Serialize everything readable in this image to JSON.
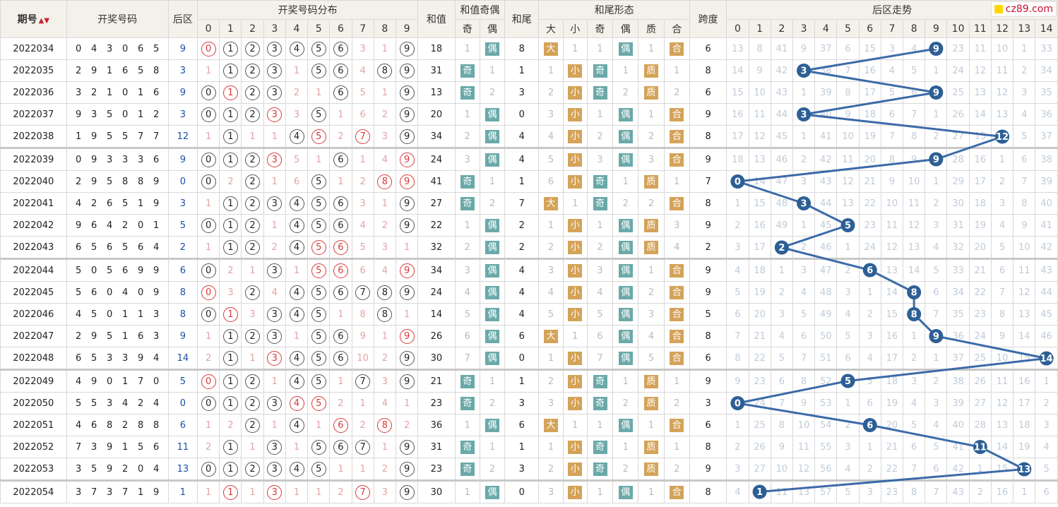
{
  "header": {
    "issue": "期号",
    "draw": "开奖号码",
    "back": "后区",
    "dist": "开奖号码分布",
    "sum": "和值",
    "sum_parity": "和值奇偶",
    "tail": "和尾",
    "tail_form": "和尾形态",
    "span": "跨度",
    "trend": "后区走势",
    "odd": "奇",
    "even": "偶",
    "big": "大",
    "small": "小",
    "prime": "质",
    "composite": "合",
    "digits": [
      "0",
      "1",
      "2",
      "3",
      "4",
      "5",
      "6",
      "7",
      "8",
      "9"
    ],
    "trend_cols": [
      "0",
      "1",
      "2",
      "3",
      "4",
      "5",
      "6",
      "7",
      "8",
      "9",
      "10",
      "11",
      "12",
      "13",
      "14"
    ]
  },
  "logo": {
    "text": "cz89.com"
  },
  "colors": {
    "ball_red": "#d83a3a",
    "tag_teal": "#6ba9a9",
    "tag_orange": "#d4a358",
    "trend_line": "#3b6aa8",
    "trend_node": "#2d5f95"
  },
  "rows": [
    {
      "issue": "2022034",
      "d": [
        "0",
        "4",
        "3",
        "0",
        "6",
        "5"
      ],
      "b": "9",
      "dist": [
        "0r",
        "1",
        "2",
        "3",
        "4",
        "5",
        "6",
        "3",
        "1",
        "9"
      ],
      "sum": "18",
      "sp": [
        "1",
        "偶"
      ],
      "tail": "8",
      "bs": [
        "大",
        "1"
      ],
      "oe": [
        "1",
        "偶"
      ],
      "pc": [
        "1",
        "合"
      ],
      "span": "6",
      "tr": [
        "13",
        "8",
        "41",
        "9",
        "37",
        "6",
        "15",
        "3",
        "4",
        "9",
        "23",
        "11",
        "10",
        "1",
        "33"
      ]
    },
    {
      "issue": "2022035",
      "d": [
        "2",
        "9",
        "1",
        "6",
        "5",
        "8"
      ],
      "b": "3",
      "dist": [
        "1",
        "1",
        "2",
        "3",
        "1",
        "5",
        "6",
        "4",
        "8",
        "9"
      ],
      "sum": "31",
      "sp": [
        "奇",
        "1"
      ],
      "tail": "1",
      "bs": [
        "1",
        "小"
      ],
      "oe": [
        "奇",
        "1"
      ],
      "pc": [
        "质",
        "1"
      ],
      "span": "8",
      "tr": [
        "14",
        "9",
        "42",
        "3",
        "38",
        "7",
        "16",
        "4",
        "5",
        "1",
        "24",
        "12",
        "11",
        "2",
        "34"
      ]
    },
    {
      "issue": "2022036",
      "d": [
        "3",
        "2",
        "1",
        "0",
        "1",
        "6"
      ],
      "b": "9",
      "dist": [
        "0",
        "1r",
        "2",
        "3",
        "2",
        "1",
        "6",
        "5",
        "1",
        "9"
      ],
      "sum": "13",
      "sp": [
        "奇",
        "2"
      ],
      "tail": "3",
      "bs": [
        "2",
        "小"
      ],
      "oe": [
        "奇",
        "2"
      ],
      "pc": [
        "质",
        "2"
      ],
      "span": "6",
      "tr": [
        "15",
        "10",
        "43",
        "1",
        "39",
        "8",
        "17",
        "5",
        "6",
        "9",
        "25",
        "13",
        "12",
        "3",
        "35"
      ]
    },
    {
      "issue": "2022037",
      "d": [
        "9",
        "3",
        "5",
        "0",
        "1",
        "2"
      ],
      "b": "3",
      "dist": [
        "0",
        "1",
        "2",
        "3r",
        "3",
        "5",
        "1",
        "6",
        "2",
        "9"
      ],
      "sum": "20",
      "sp": [
        "1",
        "偶"
      ],
      "tail": "0",
      "bs": [
        "3",
        "小"
      ],
      "oe": [
        "1",
        "偶"
      ],
      "pc": [
        "1",
        "合"
      ],
      "span": "9",
      "tr": [
        "16",
        "11",
        "44",
        "3",
        "40",
        "9",
        "18",
        "6",
        "7",
        "1",
        "26",
        "14",
        "13",
        "4",
        "36"
      ]
    },
    {
      "issue": "2022038",
      "d": [
        "1",
        "9",
        "5",
        "5",
        "7",
        "7"
      ],
      "b": "12",
      "dist": [
        "1",
        "1",
        "1",
        "1",
        "4",
        "5r",
        "2",
        "7r",
        "3",
        "9"
      ],
      "sum": "34",
      "sp": [
        "2",
        "偶"
      ],
      "tail": "4",
      "bs": [
        "4",
        "小"
      ],
      "oe": [
        "2",
        "偶"
      ],
      "pc": [
        "2",
        "合"
      ],
      "span": "8",
      "tr": [
        "17",
        "12",
        "45",
        "1",
        "41",
        "10",
        "19",
        "7",
        "8",
        "2",
        "27",
        "15",
        "12",
        "5",
        "37"
      ]
    },
    {
      "issue": "2022039",
      "d": [
        "0",
        "9",
        "3",
        "3",
        "3",
        "6"
      ],
      "b": "9",
      "dist": [
        "0",
        "1",
        "2",
        "3r",
        "5",
        "1",
        "6",
        "1",
        "4",
        "9r"
      ],
      "sum": "24",
      "sp": [
        "3",
        "偶"
      ],
      "tail": "4",
      "bs": [
        "5",
        "小"
      ],
      "oe": [
        "3",
        "偶"
      ],
      "pc": [
        "3",
        "合"
      ],
      "span": "9",
      "tr": [
        "18",
        "13",
        "46",
        "2",
        "42",
        "11",
        "20",
        "8",
        "9",
        "9",
        "28",
        "16",
        "1",
        "6",
        "38"
      ]
    },
    {
      "issue": "2022040",
      "d": [
        "2",
        "9",
        "5",
        "8",
        "8",
        "9"
      ],
      "b": "0",
      "dist": [
        "0",
        "2",
        "2",
        "1",
        "6",
        "5",
        "1",
        "2",
        "8r",
        "9r"
      ],
      "sum": "41",
      "sp": [
        "奇",
        "1"
      ],
      "tail": "1",
      "bs": [
        "6",
        "小"
      ],
      "oe": [
        "奇",
        "1"
      ],
      "pc": [
        "质",
        "1"
      ],
      "span": "7",
      "tr": [
        "0",
        "14",
        "47",
        "3",
        "43",
        "12",
        "21",
        "9",
        "10",
        "1",
        "29",
        "17",
        "2",
        "7",
        "39"
      ]
    },
    {
      "issue": "2022041",
      "d": [
        "4",
        "2",
        "6",
        "5",
        "1",
        "9"
      ],
      "b": "3",
      "dist": [
        "1",
        "1",
        "2",
        "3",
        "4",
        "5",
        "6",
        "3",
        "1",
        "9"
      ],
      "sum": "27",
      "sp": [
        "奇",
        "2"
      ],
      "tail": "7",
      "bs": [
        "大",
        "1"
      ],
      "oe": [
        "奇",
        "2"
      ],
      "pc": [
        "2",
        "合"
      ],
      "span": "8",
      "tr": [
        "1",
        "15",
        "48",
        "3",
        "44",
        "13",
        "22",
        "10",
        "11",
        "2",
        "30",
        "18",
        "3",
        "8",
        "40"
      ]
    },
    {
      "issue": "2022042",
      "d": [
        "9",
        "6",
        "4",
        "2",
        "0",
        "1"
      ],
      "b": "5",
      "dist": [
        "0",
        "1",
        "2",
        "1",
        "4",
        "5",
        "6",
        "4",
        "2",
        "9"
      ],
      "sum": "22",
      "sp": [
        "1",
        "偶"
      ],
      "tail": "2",
      "bs": [
        "1",
        "小"
      ],
      "oe": [
        "1",
        "偶"
      ],
      "pc": [
        "质",
        "3"
      ],
      "span": "9",
      "tr": [
        "2",
        "16",
        "49",
        "1",
        "45",
        "5",
        "23",
        "11",
        "12",
        "3",
        "31",
        "19",
        "4",
        "9",
        "41"
      ]
    },
    {
      "issue": "2022043",
      "d": [
        "6",
        "5",
        "6",
        "5",
        "6",
        "4"
      ],
      "b": "2",
      "dist": [
        "1",
        "1",
        "2",
        "2",
        "4",
        "5r",
        "6r",
        "5",
        "3",
        "1"
      ],
      "sum": "32",
      "sp": [
        "2",
        "偶"
      ],
      "tail": "2",
      "bs": [
        "2",
        "小"
      ],
      "oe": [
        "2",
        "偶"
      ],
      "pc": [
        "质",
        "4"
      ],
      "span": "2",
      "tr": [
        "3",
        "17",
        "2",
        "2",
        "46",
        "1",
        "24",
        "12",
        "13",
        "4",
        "32",
        "20",
        "5",
        "10",
        "42"
      ]
    },
    {
      "issue": "2022044",
      "d": [
        "5",
        "0",
        "5",
        "6",
        "9",
        "9"
      ],
      "b": "6",
      "dist": [
        "0",
        "2",
        "1",
        "3",
        "1",
        "5r",
        "6r",
        "6",
        "4",
        "9r"
      ],
      "sum": "34",
      "sp": [
        "3",
        "偶"
      ],
      "tail": "4",
      "bs": [
        "3",
        "小"
      ],
      "oe": [
        "3",
        "偶"
      ],
      "pc": [
        "1",
        "合"
      ],
      "span": "9",
      "tr": [
        "4",
        "18",
        "1",
        "3",
        "47",
        "2",
        "6",
        "13",
        "14",
        "5",
        "33",
        "21",
        "6",
        "11",
        "43"
      ]
    },
    {
      "issue": "2022045",
      "d": [
        "5",
        "6",
        "0",
        "4",
        "0",
        "9"
      ],
      "b": "8",
      "dist": [
        "0r",
        "3",
        "2",
        "4",
        "4",
        "5",
        "6",
        "7",
        "8",
        "9"
      ],
      "sum": "24",
      "sp": [
        "4",
        "偶"
      ],
      "tail": "4",
      "bs": [
        "4",
        "小"
      ],
      "oe": [
        "4",
        "偶"
      ],
      "pc": [
        "2",
        "合"
      ],
      "span": "9",
      "tr": [
        "5",
        "19",
        "2",
        "4",
        "48",
        "3",
        "1",
        "14",
        "8",
        "6",
        "34",
        "22",
        "7",
        "12",
        "44"
      ]
    },
    {
      "issue": "2022046",
      "d": [
        "4",
        "5",
        "0",
        "1",
        "1",
        "3"
      ],
      "b": "8",
      "dist": [
        "0",
        "1r",
        "3",
        "3",
        "4",
        "5",
        "1",
        "8",
        "8",
        "1"
      ],
      "sum": "14",
      "sp": [
        "5",
        "偶"
      ],
      "tail": "4",
      "bs": [
        "5",
        "小"
      ],
      "oe": [
        "5",
        "偶"
      ],
      "pc": [
        "3",
        "合"
      ],
      "span": "5",
      "tr": [
        "6",
        "20",
        "3",
        "5",
        "49",
        "4",
        "2",
        "15",
        "8",
        "7",
        "35",
        "23",
        "8",
        "13",
        "45"
      ]
    },
    {
      "issue": "2022047",
      "d": [
        "2",
        "9",
        "5",
        "1",
        "6",
        "3"
      ],
      "b": "9",
      "dist": [
        "1",
        "1",
        "2",
        "3",
        "1",
        "5",
        "6",
        "9",
        "1",
        "9r"
      ],
      "sum": "26",
      "sp": [
        "6",
        "偶"
      ],
      "tail": "6",
      "bs": [
        "大",
        "1"
      ],
      "oe": [
        "6",
        "偶"
      ],
      "pc": [
        "4",
        "合"
      ],
      "span": "8",
      "tr": [
        "7",
        "21",
        "4",
        "6",
        "50",
        "5",
        "3",
        "16",
        "1",
        "9",
        "36",
        "24",
        "9",
        "14",
        "46"
      ]
    },
    {
      "issue": "2022048",
      "d": [
        "6",
        "5",
        "3",
        "3",
        "9",
        "4"
      ],
      "b": "14",
      "dist": [
        "2",
        "1",
        "1",
        "3r",
        "4",
        "5",
        "6",
        "10",
        "2",
        "9"
      ],
      "sum": "30",
      "sp": [
        "7",
        "偶"
      ],
      "tail": "0",
      "bs": [
        "1",
        "小"
      ],
      "oe": [
        "7",
        "偶"
      ],
      "pc": [
        "5",
        "合"
      ],
      "span": "6",
      "tr": [
        "8",
        "22",
        "5",
        "7",
        "51",
        "6",
        "4",
        "17",
        "2",
        "1",
        "37",
        "25",
        "10",
        "15",
        "14"
      ]
    },
    {
      "issue": "2022049",
      "d": [
        "4",
        "9",
        "0",
        "1",
        "7",
        "0"
      ],
      "b": "5",
      "dist": [
        "0r",
        "1",
        "2",
        "1",
        "4",
        "5",
        "1",
        "7",
        "3",
        "9"
      ],
      "sum": "21",
      "sp": [
        "奇",
        "1"
      ],
      "tail": "1",
      "bs": [
        "2",
        "小"
      ],
      "oe": [
        "奇",
        "1"
      ],
      "pc": [
        "质",
        "1"
      ],
      "span": "9",
      "tr": [
        "9",
        "23",
        "6",
        "8",
        "52",
        "5",
        "5",
        "18",
        "3",
        "2",
        "38",
        "26",
        "11",
        "16",
        "1"
      ]
    },
    {
      "issue": "2022050",
      "d": [
        "5",
        "5",
        "3",
        "4",
        "2",
        "4"
      ],
      "b": "0",
      "dist": [
        "0",
        "1",
        "2",
        "3",
        "4r",
        "5r",
        "2",
        "1",
        "4",
        "1"
      ],
      "sum": "23",
      "sp": [
        "奇",
        "2"
      ],
      "tail": "3",
      "bs": [
        "3",
        "小"
      ],
      "oe": [
        "奇",
        "2"
      ],
      "pc": [
        "质",
        "2"
      ],
      "span": "3",
      "tr": [
        "0",
        "24",
        "7",
        "9",
        "53",
        "1",
        "6",
        "19",
        "4",
        "3",
        "39",
        "27",
        "12",
        "17",
        "2"
      ]
    },
    {
      "issue": "2022051",
      "d": [
        "4",
        "6",
        "8",
        "2",
        "8",
        "8"
      ],
      "b": "6",
      "dist": [
        "1",
        "2",
        "2",
        "1",
        "4",
        "1",
        "6r",
        "2",
        "8r",
        "2"
      ],
      "sum": "36",
      "sp": [
        "1",
        "偶"
      ],
      "tail": "6",
      "bs": [
        "大",
        "1"
      ],
      "oe": [
        "1",
        "偶"
      ],
      "pc": [
        "1",
        "合"
      ],
      "span": "6",
      "tr": [
        "1",
        "25",
        "8",
        "10",
        "54",
        "2",
        "6",
        "20",
        "5",
        "4",
        "40",
        "28",
        "13",
        "18",
        "3"
      ]
    },
    {
      "issue": "2022052",
      "d": [
        "7",
        "3",
        "9",
        "1",
        "5",
        "6"
      ],
      "b": "11",
      "dist": [
        "2",
        "1",
        "1",
        "3",
        "1",
        "5",
        "6",
        "7",
        "1",
        "9"
      ],
      "sum": "31",
      "sp": [
        "奇",
        "1"
      ],
      "tail": "1",
      "bs": [
        "1",
        "小"
      ],
      "oe": [
        "奇",
        "1"
      ],
      "pc": [
        "质",
        "1"
      ],
      "span": "8",
      "tr": [
        "2",
        "26",
        "9",
        "11",
        "55",
        "3",
        "1",
        "21",
        "6",
        "5",
        "41",
        "11",
        "14",
        "19",
        "4"
      ]
    },
    {
      "issue": "2022053",
      "d": [
        "3",
        "5",
        "9",
        "2",
        "0",
        "4"
      ],
      "b": "13",
      "dist": [
        "0",
        "1",
        "2",
        "3",
        "4",
        "5",
        "1",
        "1",
        "2",
        "9"
      ],
      "sum": "23",
      "sp": [
        "奇",
        "2"
      ],
      "tail": "3",
      "bs": [
        "2",
        "小"
      ],
      "oe": [
        "奇",
        "2"
      ],
      "pc": [
        "质",
        "2"
      ],
      "span": "9",
      "tr": [
        "3",
        "27",
        "10",
        "12",
        "56",
        "4",
        "2",
        "22",
        "7",
        "6",
        "42",
        "1",
        "15",
        "13",
        "5"
      ]
    },
    {
      "issue": "2022054",
      "d": [
        "3",
        "7",
        "3",
        "7",
        "1",
        "9"
      ],
      "b": "1",
      "dist": [
        "1",
        "1r",
        "1",
        "3r",
        "1",
        "1",
        "2",
        "7r",
        "3",
        "9"
      ],
      "sum": "30",
      "sp": [
        "1",
        "偶"
      ],
      "tail": "0",
      "bs": [
        "3",
        "小"
      ],
      "oe": [
        "1",
        "偶"
      ],
      "pc": [
        "1",
        "合"
      ],
      "span": "8",
      "tr": [
        "4",
        "1",
        "11",
        "13",
        "57",
        "5",
        "3",
        "23",
        "8",
        "7",
        "43",
        "2",
        "16",
        "1",
        "6"
      ]
    }
  ]
}
